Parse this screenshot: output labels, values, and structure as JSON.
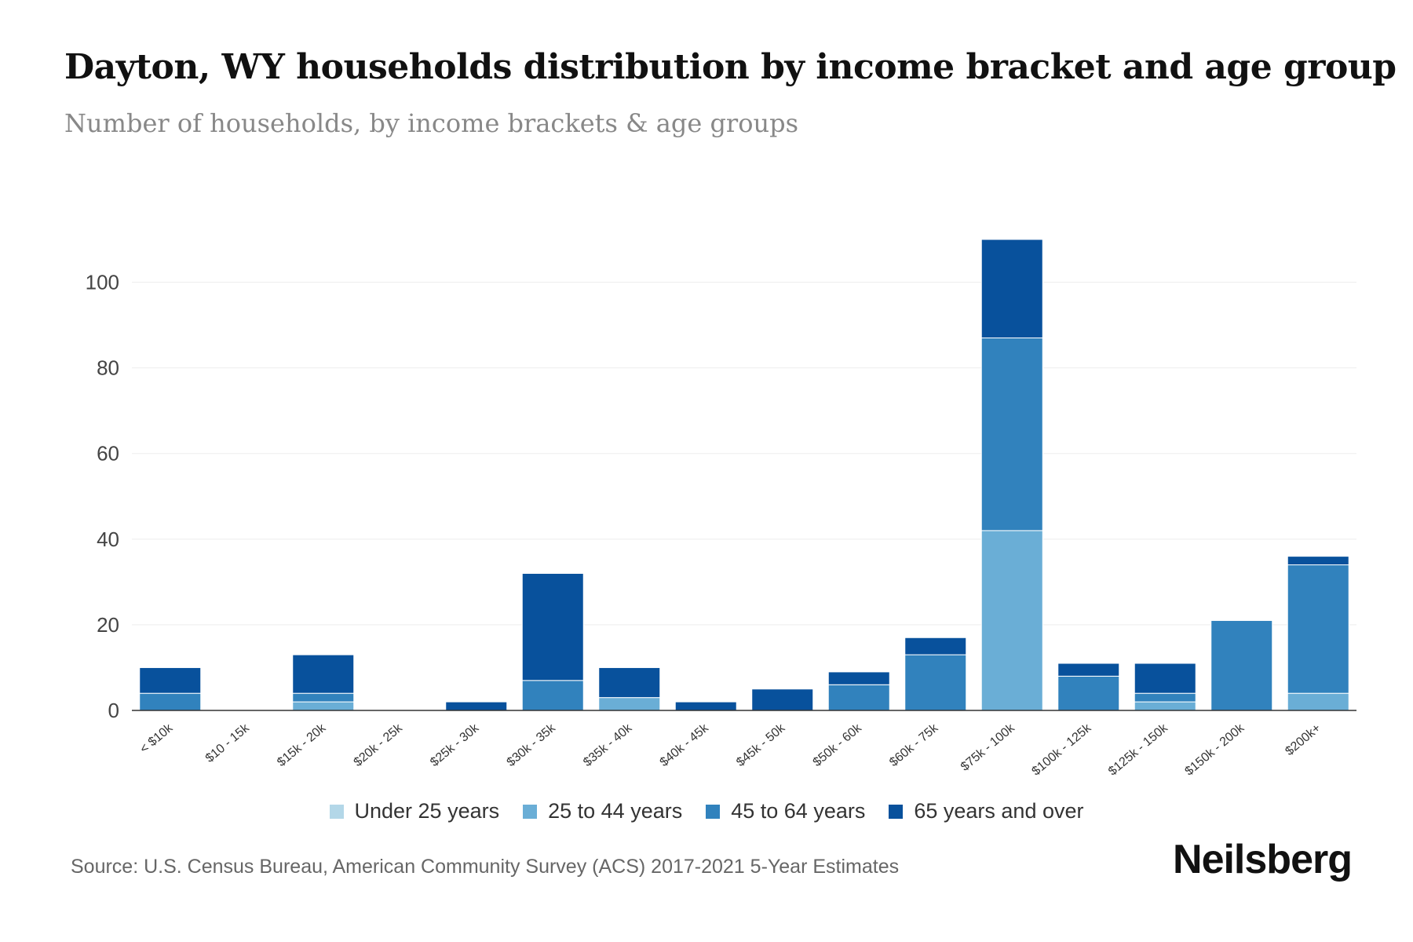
{
  "chart_data": {
    "type": "bar",
    "stacked": true,
    "title": "Dayton, WY households distribution by income bracket and age group",
    "subtitle": "Number of households, by income brackets & age groups",
    "categories": [
      "< $10k",
      "$10 - 15k",
      "$15k - 20k",
      "$20k - 25k",
      "$25k - 30k",
      "$30k - 35k",
      "$35k - 40k",
      "$40k - 45k",
      "$45k - 50k",
      "$50k - 60k",
      "$60k - 75k",
      "$75k - 100k",
      "$100k - 125k",
      "$125k - 150k",
      "$150k - 200k",
      "$200k+"
    ],
    "series": [
      {
        "name": "Under 25 years",
        "color": "#b3d7e8",
        "values": [
          0,
          0,
          0,
          0,
          0,
          0,
          0,
          0,
          0,
          0,
          0,
          0,
          0,
          0,
          0,
          0
        ]
      },
      {
        "name": "25 to 44 years",
        "color": "#6aaed6",
        "values": [
          0,
          0,
          2,
          0,
          0,
          0,
          3,
          0,
          0,
          0,
          0,
          42,
          0,
          2,
          0,
          4
        ]
      },
      {
        "name": "45 to 64 years",
        "color": "#3182bd",
        "values": [
          4,
          0,
          2,
          0,
          0,
          7,
          0,
          0,
          0,
          6,
          13,
          45,
          8,
          2,
          21,
          30
        ]
      },
      {
        "name": "65 years and over",
        "color": "#08519c",
        "values": [
          6,
          0,
          9,
          0,
          2,
          25,
          7,
          2,
          5,
          3,
          4,
          23,
          3,
          7,
          0,
          2
        ]
      }
    ],
    "yticks": [
      0,
      20,
      40,
      60,
      80,
      100
    ],
    "ylim": [
      0,
      110
    ],
    "grid": true,
    "legend": "bottom-center"
  },
  "source": "Source: U.S. Census Bureau, American Community Survey (ACS) 2017-2021 5-Year Estimates",
  "brand": "Neilsberg"
}
